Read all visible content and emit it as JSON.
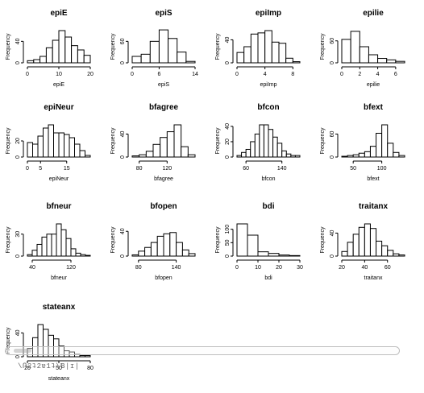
{
  "chart_data": [
    {
      "type": "bar",
      "title": "epiE",
      "xlabel": "epiE",
      "ylabel": "Frequency",
      "bin_edges": [
        0,
        2,
        4,
        6,
        8,
        10,
        12,
        14,
        16,
        18,
        20
      ],
      "values": [
        4,
        6,
        12,
        28,
        42,
        60,
        48,
        32,
        24,
        14
      ],
      "xlim": [
        0,
        20
      ],
      "xticks": [
        "0",
        "10",
        "20"
      ],
      "yticks": [
        "0",
        "40"
      ],
      "ylim": [
        0,
        60
      ]
    },
    {
      "type": "bar",
      "title": "epiS",
      "xlabel": "epiS",
      "ylabel": "Frequency",
      "bin_edges": [
        0,
        2,
        4,
        6,
        8,
        10,
        12,
        14
      ],
      "values": [
        18,
        24,
        60,
        92,
        68,
        30,
        4
      ],
      "xlim": [
        0,
        14
      ],
      "xticks": [
        "0",
        "6",
        "14"
      ],
      "yticks": [
        "0",
        "60"
      ],
      "ylim": [
        0,
        90
      ]
    },
    {
      "type": "bar",
      "title": "epiImp",
      "xlabel": "epiImp",
      "ylabel": "Frequency",
      "bin_edges": [
        0,
        1,
        2,
        3,
        4,
        5,
        6,
        7,
        8,
        9
      ],
      "values": [
        18,
        28,
        50,
        52,
        56,
        36,
        34,
        8,
        2
      ],
      "xlim": [
        0,
        9
      ],
      "xticks": [
        "0",
        "4",
        "8"
      ],
      "yticks": [
        "0",
        "40"
      ],
      "ylim": [
        0,
        56
      ]
    },
    {
      "type": "bar",
      "title": "epilie",
      "xlabel": "epilie",
      "ylabel": "Frequency",
      "bin_edges": [
        0,
        1,
        2,
        3,
        4,
        5,
        6,
        7
      ],
      "values": [
        64,
        86,
        44,
        22,
        12,
        8,
        4
      ],
      "xlim": [
        0,
        7
      ],
      "xticks": [
        "0",
        "2",
        "4",
        "6"
      ],
      "yticks": [
        "0",
        "60"
      ],
      "ylim": [
        0,
        88
      ]
    },
    {
      "type": "bar",
      "title": "epiNeur",
      "xlabel": "epiNeur",
      "ylabel": "Frequency",
      "bin_edges": [
        0,
        2,
        4,
        6,
        8,
        10,
        12,
        14,
        16,
        18,
        20,
        22,
        24
      ],
      "values": [
        18,
        16,
        26,
        36,
        40,
        30,
        30,
        28,
        24,
        16,
        8,
        2
      ],
      "xlim": [
        0,
        24
      ],
      "xticks": [
        "0",
        "5",
        "15"
      ],
      "yticks": [
        "0",
        "20"
      ],
      "ylim": [
        0,
        40
      ]
    },
    {
      "type": "bar",
      "title": "bfagree",
      "xlabel": "bfagree",
      "ylabel": "Frequency",
      "bin_edges": [
        70,
        80,
        90,
        100,
        110,
        120,
        130,
        140,
        150,
        160
      ],
      "values": [
        2,
        4,
        10,
        22,
        34,
        44,
        56,
        18,
        4
      ],
      "xlim": [
        70,
        160
      ],
      "xticks": [
        "80",
        "120"
      ],
      "yticks": [
        "0",
        "40"
      ],
      "ylim": [
        0,
        56
      ]
    },
    {
      "type": "bar",
      "title": "bfcon",
      "xlabel": "bfcon",
      "ylabel": "Frequency",
      "bin_edges": [
        40,
        50,
        60,
        70,
        80,
        90,
        100,
        110,
        120,
        130,
        140,
        150,
        160,
        170,
        180
      ],
      "values": [
        2,
        6,
        10,
        20,
        30,
        42,
        42,
        36,
        26,
        18,
        8,
        4,
        2,
        2
      ],
      "xlim": [
        40,
        180
      ],
      "xticks": [
        "60",
        "140"
      ],
      "yticks": [
        "0",
        "20",
        "40"
      ],
      "ylim": [
        0,
        42
      ]
    },
    {
      "type": "bar",
      "title": "bfext",
      "xlabel": "bfext",
      "ylabel": "Frequency",
      "bin_edges": [
        30,
        40,
        50,
        60,
        70,
        80,
        90,
        100,
        110,
        120,
        130,
        140
      ],
      "values": [
        2,
        4,
        6,
        10,
        14,
        28,
        62,
        84,
        36,
        12,
        4
      ],
      "xlim": [
        30,
        140
      ],
      "xticks": [
        "50",
        "100"
      ],
      "yticks": [
        "0",
        "60"
      ],
      "ylim": [
        0,
        84
      ]
    },
    {
      "type": "bar",
      "title": "bfneur",
      "xlabel": "bfneur",
      "ylabel": "Frequency",
      "bin_edges": [
        30,
        40,
        50,
        60,
        70,
        80,
        90,
        100,
        110,
        120,
        130,
        140,
        150,
        160
      ],
      "values": [
        2,
        8,
        16,
        26,
        30,
        30,
        44,
        36,
        24,
        10,
        4,
        2,
        1
      ],
      "xlim": [
        30,
        160
      ],
      "xticks": [
        "40",
        "120"
      ],
      "yticks": [
        "0",
        "30"
      ],
      "ylim": [
        0,
        44
      ]
    },
    {
      "type": "bar",
      "title": "bfopen",
      "xlabel": "bfopen",
      "ylabel": "Frequency",
      "bin_edges": [
        70,
        80,
        90,
        100,
        110,
        120,
        130,
        140,
        150,
        160,
        170
      ],
      "values": [
        2,
        8,
        14,
        22,
        32,
        36,
        38,
        22,
        10,
        4
      ],
      "xlim": [
        70,
        170
      ],
      "xticks": [
        "80",
        "140"
      ],
      "yticks": [
        "0",
        "40"
      ],
      "ylim": [
        0,
        52
      ]
    },
    {
      "type": "bar",
      "title": "bdi",
      "xlabel": "bdi",
      "ylabel": "Frequency",
      "bin_edges": [
        0,
        5,
        10,
        15,
        20,
        25,
        30
      ],
      "values": [
        120,
        78,
        16,
        10,
        4,
        2
      ],
      "xlim": [
        0,
        30
      ],
      "xticks": [
        "0",
        "10",
        "20",
        "30"
      ],
      "yticks": [
        "0",
        "50",
        "100"
      ],
      "ylim": [
        0,
        120
      ]
    },
    {
      "type": "bar",
      "title": "traitanx",
      "xlabel": "traitanx",
      "ylabel": "Frequency",
      "bin_edges": [
        20,
        25,
        30,
        35,
        40,
        45,
        50,
        55,
        60,
        65,
        70,
        75
      ],
      "values": [
        8,
        24,
        38,
        50,
        56,
        48,
        26,
        18,
        10,
        4,
        2
      ],
      "xlim": [
        20,
        75
      ],
      "xticks": [
        "20",
        "40",
        "60"
      ],
      "yticks": [
        "0",
        "40"
      ],
      "ylim": [
        0,
        56
      ]
    },
    {
      "type": "bar",
      "title": "stateanx",
      "xlabel": "stateanx",
      "ylabel": "Frequency",
      "bin_edges": [
        20,
        25,
        30,
        35,
        40,
        45,
        50,
        55,
        60,
        65,
        70,
        75,
        80
      ],
      "values": [
        14,
        32,
        54,
        46,
        36,
        30,
        18,
        10,
        8,
        4,
        2,
        2
      ],
      "xlim": [
        20,
        80
      ],
      "xticks": [
        "20",
        "50",
        "80"
      ],
      "yticks": [
        "0",
        "40"
      ],
      "ylim": [
        0,
        54
      ]
    }
  ],
  "overlay": {
    "scroll_ghost_text": "\\Ո2ʇ2ɐ1ʇ\\Ɓ|ɪ|"
  }
}
